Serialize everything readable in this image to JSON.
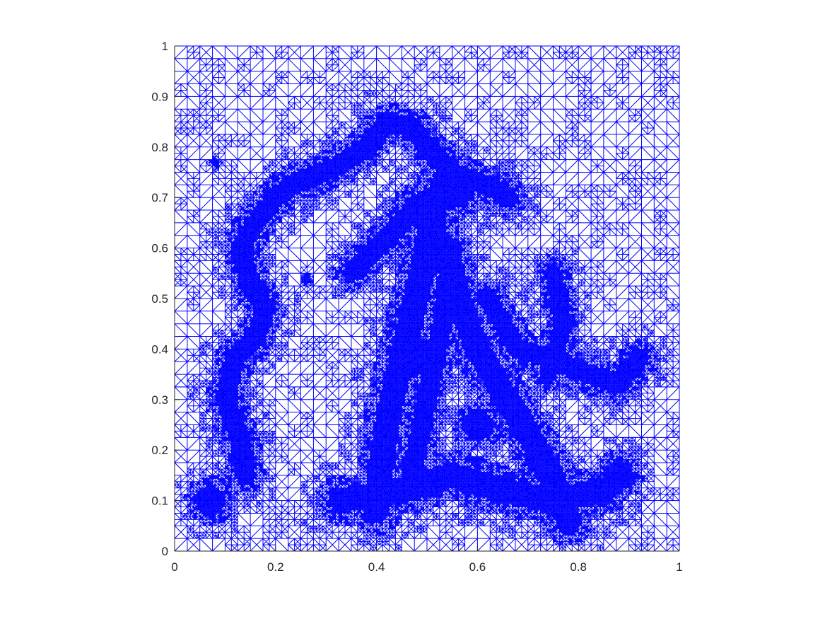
{
  "chart_data": {
    "type": "mesh",
    "title": "",
    "xlabel": "",
    "ylabel": "",
    "xlim": [
      0,
      1
    ],
    "ylim": [
      0,
      1
    ],
    "xticks": [
      0,
      0.2,
      0.4,
      0.6,
      0.8,
      1
    ],
    "yticks": [
      0,
      0.1,
      0.2,
      0.3,
      0.4,
      0.5,
      0.6,
      0.7,
      0.8,
      0.9,
      1
    ],
    "xtick_labels": [
      "0",
      "0.2",
      "0.4",
      "0.6",
      "0.8",
      "1"
    ],
    "ytick_labels": [
      "0",
      "0.1",
      "0.2",
      "0.3",
      "0.4",
      "0.5",
      "0.6",
      "0.7",
      "0.8",
      "0.9",
      "1"
    ],
    "grid": false,
    "mesh_color": "#0000ff",
    "axis_color": "#262626",
    "base_grid_divisions": 40,
    "refined_regions": [
      {
        "type": "polyline",
        "width": 0.02,
        "points": [
          [
            0.24,
            0.73
          ],
          [
            0.2,
            0.7
          ],
          [
            0.16,
            0.65
          ],
          [
            0.13,
            0.6
          ],
          [
            0.15,
            0.53
          ],
          [
            0.18,
            0.48
          ],
          [
            0.16,
            0.42
          ],
          [
            0.12,
            0.38
          ],
          [
            0.1,
            0.3
          ],
          [
            0.13,
            0.22
          ],
          [
            0.14,
            0.15
          ]
        ]
      },
      {
        "type": "polyline",
        "width": 0.02,
        "points": [
          [
            0.24,
            0.73
          ],
          [
            0.32,
            0.76
          ],
          [
            0.38,
            0.8
          ],
          [
            0.42,
            0.85
          ],
          [
            0.47,
            0.84
          ],
          [
            0.5,
            0.8
          ],
          [
            0.55,
            0.75
          ],
          [
            0.63,
            0.72
          ],
          [
            0.66,
            0.7
          ]
        ]
      },
      {
        "type": "polyline",
        "width": 0.025,
        "points": [
          [
            0.48,
            0.68
          ],
          [
            0.52,
            0.62
          ],
          [
            0.55,
            0.55
          ],
          [
            0.57,
            0.48
          ],
          [
            0.6,
            0.4
          ],
          [
            0.63,
            0.35
          ],
          [
            0.67,
            0.28
          ],
          [
            0.72,
            0.2
          ],
          [
            0.76,
            0.12
          ],
          [
            0.78,
            0.06
          ]
        ]
      },
      {
        "type": "polyline",
        "width": 0.025,
        "points": [
          [
            0.52,
            0.7
          ],
          [
            0.49,
            0.55
          ],
          [
            0.46,
            0.42
          ],
          [
            0.43,
            0.3
          ],
          [
            0.41,
            0.18
          ],
          [
            0.4,
            0.08
          ]
        ]
      },
      {
        "type": "polyline",
        "width": 0.02,
        "points": [
          [
            0.55,
            0.6
          ],
          [
            0.53,
            0.45
          ],
          [
            0.5,
            0.3
          ],
          [
            0.47,
            0.15
          ]
        ]
      },
      {
        "type": "polyline",
        "width": 0.018,
        "points": [
          [
            0.35,
            0.55
          ],
          [
            0.4,
            0.6
          ],
          [
            0.45,
            0.65
          ],
          [
            0.5,
            0.7
          ]
        ]
      },
      {
        "type": "polyline",
        "width": 0.02,
        "points": [
          [
            0.62,
            0.5
          ],
          [
            0.68,
            0.4
          ],
          [
            0.75,
            0.38
          ],
          [
            0.82,
            0.35
          ],
          [
            0.88,
            0.33
          ],
          [
            0.92,
            0.38
          ]
        ]
      },
      {
        "type": "polyline",
        "width": 0.018,
        "points": [
          [
            0.75,
            0.55
          ],
          [
            0.77,
            0.45
          ],
          [
            0.74,
            0.35
          ]
        ]
      },
      {
        "type": "polyline",
        "width": 0.025,
        "points": [
          [
            0.33,
            0.1
          ],
          [
            0.45,
            0.12
          ],
          [
            0.55,
            0.15
          ],
          [
            0.65,
            0.12
          ],
          [
            0.75,
            0.1
          ],
          [
            0.85,
            0.12
          ]
        ]
      },
      {
        "type": "circle",
        "center": [
          0.55,
          0.72
        ],
        "radius": 0.07
      },
      {
        "type": "circle",
        "center": [
          0.5,
          0.38
        ],
        "radius": 0.06
      },
      {
        "type": "circle",
        "center": [
          0.6,
          0.25
        ],
        "radius": 0.05
      },
      {
        "type": "circle",
        "center": [
          0.07,
          0.1
        ],
        "radius": 0.05
      },
      {
        "type": "circle",
        "center": [
          0.88,
          0.15
        ],
        "radius": 0.05
      },
      {
        "type": "circle",
        "center": [
          0.26,
          0.54
        ],
        "radius": 0.015
      },
      {
        "type": "circle",
        "center": [
          0.08,
          0.77
        ],
        "radius": 0.015
      }
    ]
  }
}
